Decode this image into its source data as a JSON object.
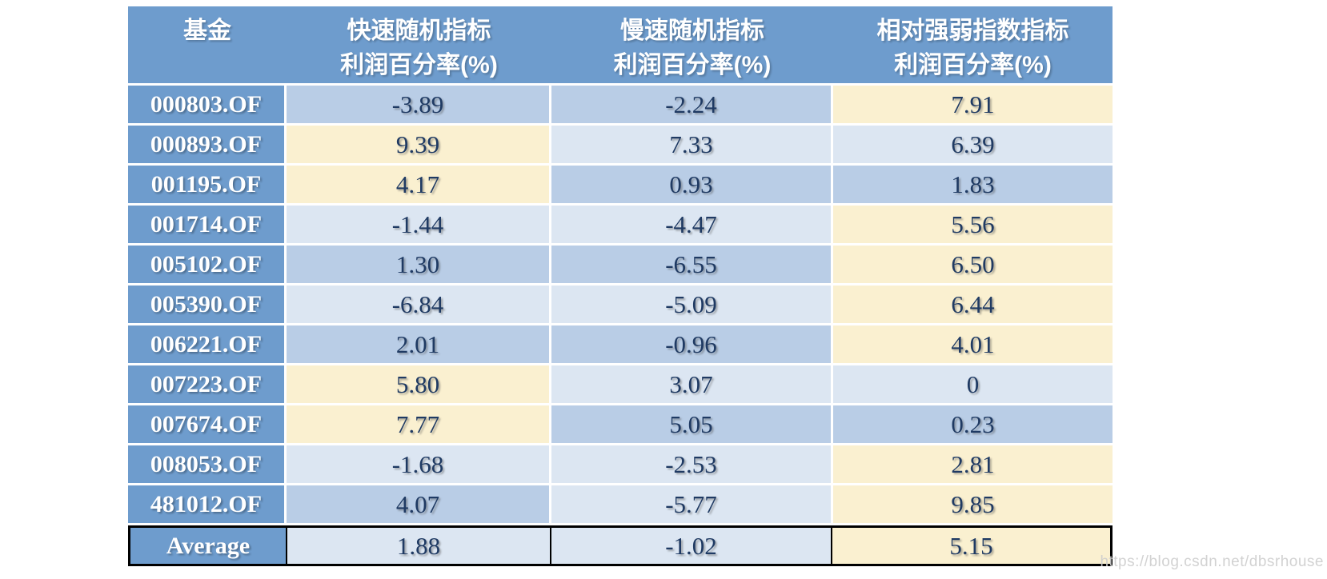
{
  "chart_data": {
    "type": "table",
    "headers": [
      {
        "line1": "基金",
        "line2": ""
      },
      {
        "line1": "快速随机指标",
        "line2": "利润百分率(%)"
      },
      {
        "line1": "慢速随机指标",
        "line2": "利润百分率(%)"
      },
      {
        "line1": "相对强弱指数指标",
        "line2": "利润百分率(%)"
      }
    ],
    "rows": [
      {
        "fund": "000803.OF",
        "values": [
          "-3.89",
          "-2.24",
          "7.91"
        ],
        "shades": [
          "m",
          "m",
          "c"
        ]
      },
      {
        "fund": "000893.OF",
        "values": [
          "9.39",
          "7.33",
          "6.39"
        ],
        "shades": [
          "c",
          "l",
          "l"
        ]
      },
      {
        "fund": "001195.OF",
        "values": [
          "4.17",
          "0.93",
          "1.83"
        ],
        "shades": [
          "c",
          "m",
          "m"
        ]
      },
      {
        "fund": "001714.OF",
        "values": [
          "-1.44",
          "-4.47",
          "5.56"
        ],
        "shades": [
          "l",
          "l",
          "c"
        ]
      },
      {
        "fund": "005102.OF",
        "values": [
          "1.30",
          "-6.55",
          "6.50"
        ],
        "shades": [
          "m",
          "m",
          "c"
        ]
      },
      {
        "fund": "005390.OF",
        "values": [
          "-6.84",
          "-5.09",
          "6.44"
        ],
        "shades": [
          "l",
          "l",
          "c"
        ]
      },
      {
        "fund": "006221.OF",
        "values": [
          "2.01",
          "-0.96",
          "4.01"
        ],
        "shades": [
          "m",
          "m",
          "c"
        ]
      },
      {
        "fund": "007223.OF",
        "values": [
          "5.80",
          "3.07",
          "0"
        ],
        "shades": [
          "c",
          "l",
          "l"
        ]
      },
      {
        "fund": "007674.OF",
        "values": [
          "7.77",
          "5.05",
          "0.23"
        ],
        "shades": [
          "c",
          "m",
          "m"
        ]
      },
      {
        "fund": "008053.OF",
        "values": [
          "-1.68",
          "-2.53",
          "2.81"
        ],
        "shades": [
          "l",
          "l",
          "c"
        ]
      },
      {
        "fund": "481012.OF",
        "values": [
          "4.07",
          "-5.77",
          "9.85"
        ],
        "shades": [
          "m",
          "l",
          "c"
        ]
      }
    ],
    "average_row": {
      "label": "Average",
      "values": [
        "1.88",
        "-1.02",
        "5.15"
      ],
      "shades": [
        "l",
        "l",
        "c"
      ]
    },
    "colors": {
      "header_blue": "#6E9CCD",
      "band_medium_blue": "#B9CDE6",
      "band_light_blue": "#DCE6F2",
      "highlight_cream": "#FAF0D0",
      "value_text_navy": "#1F3A63"
    }
  },
  "watermark": {
    "text": "https://blog.csdn.net/dbsrhouse"
  }
}
